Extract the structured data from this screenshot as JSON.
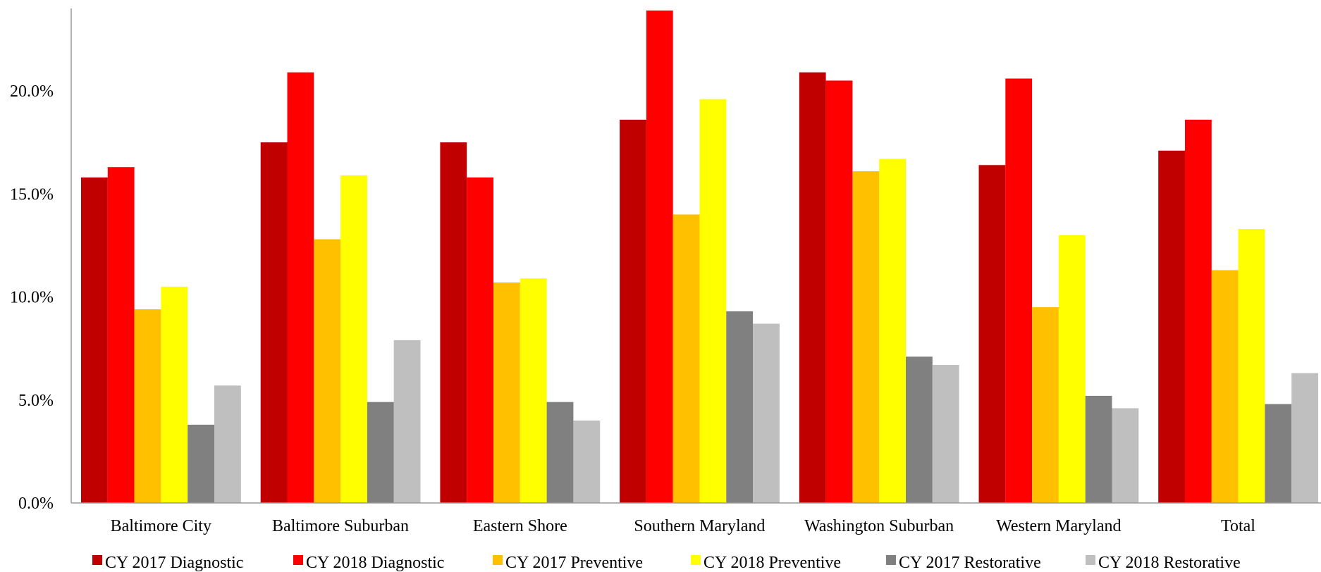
{
  "chart_data": {
    "type": "bar",
    "title": "",
    "xlabel": "",
    "ylabel": "",
    "ylim": [
      0,
      0.24
    ],
    "yticks": [
      0.0,
      0.05,
      0.1,
      0.15,
      0.2
    ],
    "ytick_labels": [
      "0.0%",
      "5.0%",
      "10.0%",
      "15.0%",
      "20.0%"
    ],
    "grid": false,
    "legend_position": "bottom",
    "categories": [
      "Baltimore City",
      "Baltimore Suburban",
      "Eastern Shore",
      "Southern Maryland",
      "Washington Suburban",
      "Western Maryland",
      "Total"
    ],
    "series": [
      {
        "name": "CY 2017 Diagnostic",
        "color": "#C00000",
        "values": [
          0.158,
          0.175,
          0.175,
          0.186,
          0.209,
          0.164,
          0.171
        ]
      },
      {
        "name": "CY 2018 Diagnostic",
        "color": "#FF0000",
        "values": [
          0.163,
          0.209,
          0.158,
          0.239,
          0.205,
          0.206,
          0.186
        ]
      },
      {
        "name": "CY 2017 Preventive",
        "color": "#FFC000",
        "values": [
          0.094,
          0.128,
          0.107,
          0.14,
          0.161,
          0.095,
          0.113
        ]
      },
      {
        "name": "CY 2018 Preventive",
        "color": "#FFFF00",
        "values": [
          0.105,
          0.159,
          0.109,
          0.196,
          0.167,
          0.13,
          0.133
        ]
      },
      {
        "name": "CY 2017 Restorative",
        "color": "#808080",
        "values": [
          0.038,
          0.049,
          0.049,
          0.093,
          0.071,
          0.052,
          0.048
        ]
      },
      {
        "name": "CY 2018 Restorative",
        "color": "#BFBFBF",
        "values": [
          0.057,
          0.079,
          0.04,
          0.087,
          0.067,
          0.046,
          0.063
        ]
      }
    ]
  }
}
